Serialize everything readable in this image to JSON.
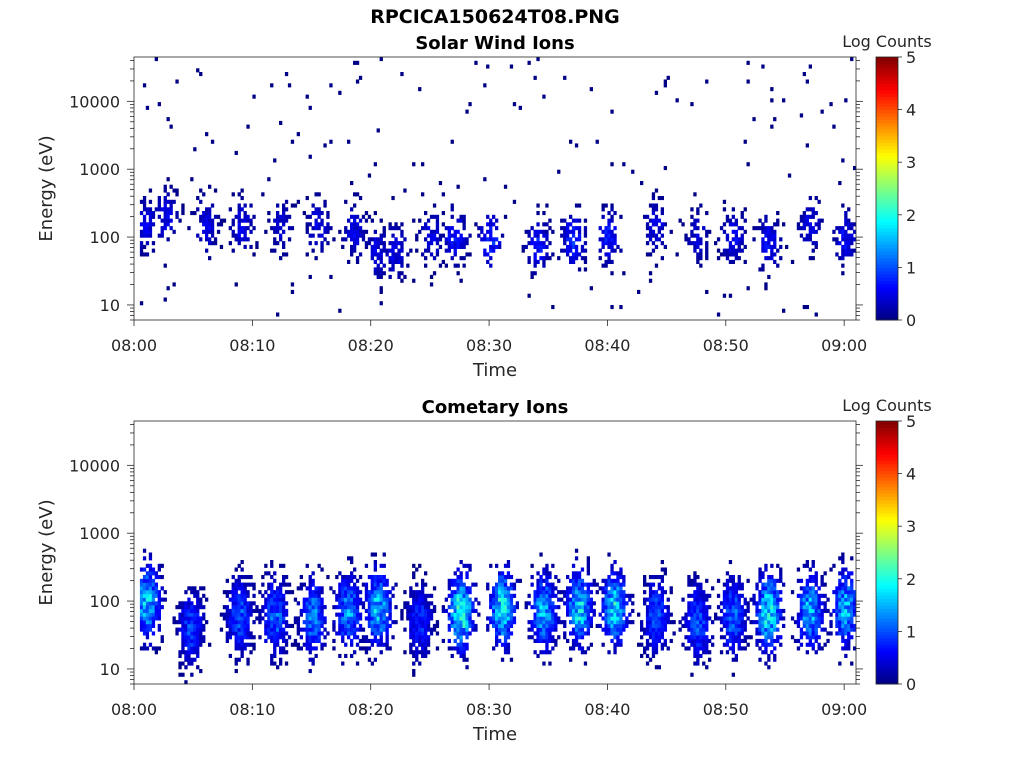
{
  "figure_title": "RPCICA150624T08.PNG",
  "chart_data": [
    {
      "type": "heatmap",
      "title": "Solar Wind Ions",
      "xlabel": "Time",
      "ylabel": "Energy (eV)",
      "x_ticks": [
        "08:00",
        "08:10",
        "08:20",
        "08:30",
        "08:40",
        "08:50",
        "09:00"
      ],
      "xlim": [
        "08:00",
        "09:01"
      ],
      "y_scale": "log",
      "y_ticks": [
        10,
        100,
        1000,
        10000
      ],
      "y_tick_labels": [
        "10",
        "100",
        "1000",
        "10000"
      ],
      "ylim": [
        6,
        45000
      ],
      "colorbar": {
        "label": "Log Counts",
        "ticks": [
          "0",
          "1",
          "2",
          "3",
          "4",
          "5"
        ],
        "range": [
          0,
          5
        ],
        "colormap": "jet"
      },
      "grid": false,
      "time_bins_min": [
        0.5,
        1,
        1.5,
        2,
        2.5,
        3,
        3.5,
        4,
        4.5,
        5,
        5.5,
        6,
        6.5,
        7,
        7.5,
        8,
        8.5,
        9,
        9.5,
        10,
        10.5,
        11,
        11.5,
        12,
        12.5,
        13,
        13.5,
        14,
        14.5,
        15,
        15.5,
        16,
        16.5,
        17,
        17.5,
        18,
        18.5,
        19,
        19.5,
        20,
        20.5,
        21,
        21.5,
        22,
        22.5,
        23,
        23.5,
        24,
        24.5,
        25,
        25.5,
        26,
        26.5,
        27,
        27.5,
        28,
        28.5,
        29,
        29.5,
        30,
        30.5,
        31,
        31.5,
        32,
        32.5,
        33,
        33.5,
        34,
        34.5,
        35,
        35.5,
        36,
        36.5,
        37,
        37.5,
        38,
        38.5,
        39,
        39.5,
        40,
        40.5,
        41,
        41.5,
        42,
        42.5,
        43,
        43.5,
        44,
        44.5,
        45,
        45.5,
        46,
        46.5,
        47,
        47.5,
        48,
        48.5,
        49,
        49.5,
        50,
        50.5,
        51,
        51.5,
        52,
        52.5,
        53,
        53.5,
        54,
        54.5,
        55,
        55.5,
        56,
        56.5,
        57,
        57.5,
        58,
        58.5,
        59,
        59.5,
        60,
        60.5
      ],
      "event_centers_min": [
        1,
        2.6,
        6,
        9,
        12.3,
        15.5,
        18.5,
        20.5,
        22,
        25,
        27,
        30,
        34,
        37,
        40,
        44,
        47.5,
        50.5,
        53.5,
        57,
        60
      ],
      "event_peak_log_counts": [
        0.5,
        0.5,
        0.5,
        0.5,
        0.4,
        0.5,
        0.5,
        0.5,
        0.5,
        0.5,
        0.7,
        0.8,
        0.7,
        0.8,
        0.7,
        0.5,
        0.4,
        0.6,
        0.6,
        0.5,
        0.6
      ],
      "event_peak_energy_eV": [
        150,
        200,
        150,
        150,
        150,
        150,
        120,
        60,
        60,
        100,
        100,
        90,
        80,
        90,
        100,
        150,
        100,
        100,
        80,
        150,
        100
      ]
    },
    {
      "type": "heatmap",
      "title": "Cometary Ions",
      "xlabel": "Time",
      "ylabel": "Energy (eV)",
      "x_ticks": [
        "08:00",
        "08:10",
        "08:20",
        "08:30",
        "08:40",
        "08:50",
        "09:00"
      ],
      "xlim": [
        "08:00",
        "09:01"
      ],
      "y_scale": "log",
      "y_ticks": [
        10,
        100,
        1000,
        10000
      ],
      "y_tick_labels": [
        "10",
        "100",
        "1000",
        "10000"
      ],
      "ylim": [
        6,
        45000
      ],
      "colorbar": {
        "label": "Log Counts",
        "ticks": [
          "0",
          "1",
          "2",
          "3",
          "4",
          "5"
        ],
        "range": [
          0,
          5
        ],
        "colormap": "jet"
      },
      "grid": false,
      "event_centers_min": [
        1,
        4.7,
        8.8,
        11.8,
        15,
        18,
        20.5,
        24,
        27.5,
        31,
        34.5,
        37.5,
        40.5,
        44,
        47.5,
        50.5,
        53.5,
        57,
        60
      ],
      "event_peak_log_counts": [
        1.6,
        0.9,
        1.0,
        1.1,
        1.2,
        1.3,
        1.6,
        0.8,
        2.0,
        1.8,
        1.5,
        1.7,
        1.7,
        1.0,
        1.0,
        1.1,
        1.8,
        1.5,
        1.5
      ],
      "event_peak_energy_eV": [
        100,
        40,
        60,
        60,
        60,
        70,
        80,
        50,
        70,
        80,
        70,
        80,
        80,
        60,
        50,
        60,
        70,
        70,
        80
      ]
    }
  ]
}
